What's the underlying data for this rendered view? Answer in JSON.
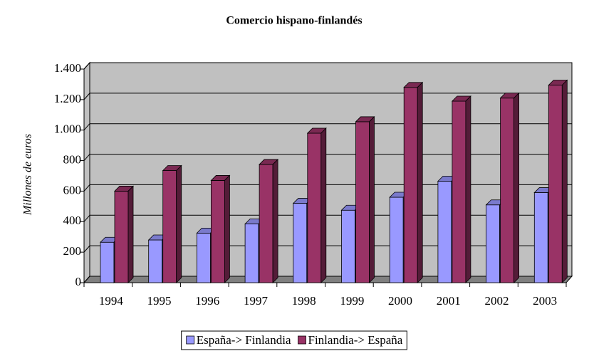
{
  "chart_data": {
    "type": "bar3d",
    "title": "Comercio hispano-finlandés",
    "ylabel": "Millones de euros",
    "categories": [
      "1994",
      "1995",
      "1996",
      "1997",
      "1998",
      "1999",
      "2000",
      "2001",
      "2002",
      "2003"
    ],
    "series": [
      {
        "name": "España-> Finlandia",
        "color": "#9999ff",
        "values": [
          265,
          280,
          325,
          385,
          520,
          475,
          560,
          665,
          510,
          590
        ]
      },
      {
        "name": "Finlandia-> España",
        "color": "#993366",
        "values": [
          600,
          735,
          670,
          775,
          980,
          1055,
          1280,
          1190,
          1210,
          1295
        ]
      }
    ],
    "ylim": [
      0,
      1400
    ],
    "yticks": [
      0,
      200,
      400,
      600,
      800,
      {
        "value": 1000,
        "label": "1.000"
      },
      {
        "value": 1200,
        "label": "1.200"
      },
      {
        "value": 1400,
        "label": "1.400"
      }
    ],
    "grid": true,
    "legend": "bottom"
  }
}
